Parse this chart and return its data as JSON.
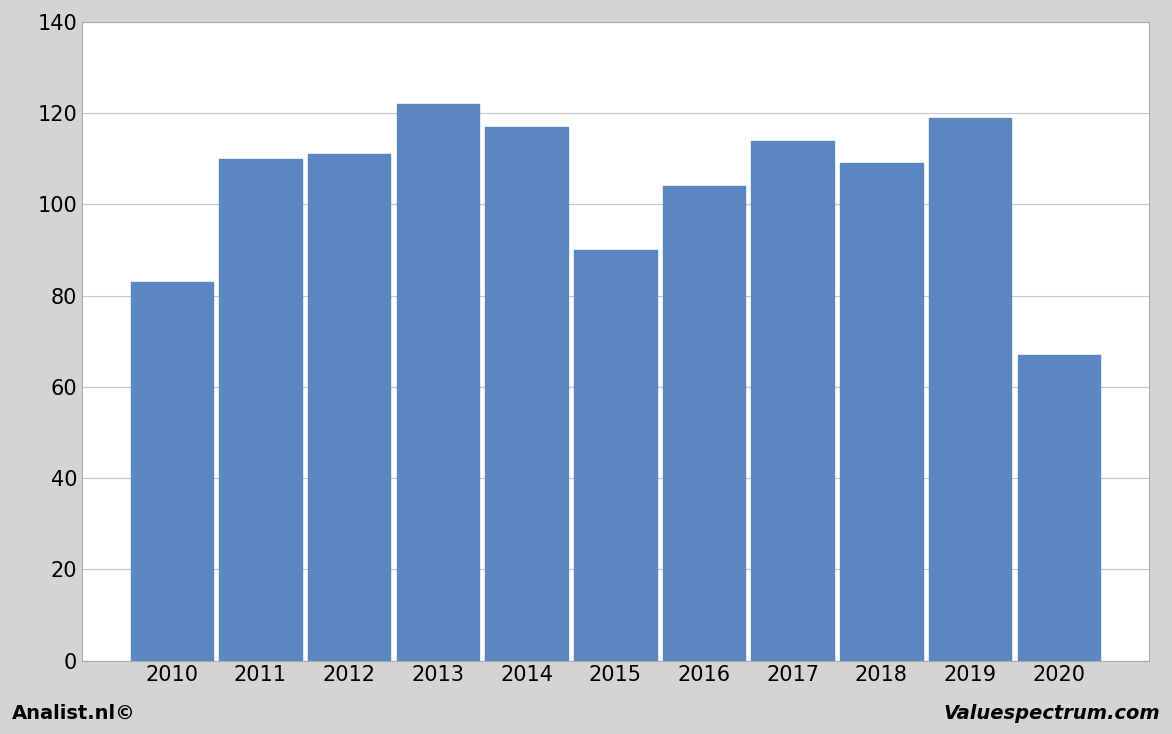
{
  "categories": [
    "2010",
    "2011",
    "2012",
    "2013",
    "2014",
    "2015",
    "2016",
    "2017",
    "2018",
    "2019",
    "2020"
  ],
  "values": [
    83,
    110,
    111,
    122,
    117,
    90,
    104,
    114,
    109,
    119,
    67
  ],
  "bar_color": "#5b87c0",
  "ylim": [
    0,
    140
  ],
  "yticks": [
    0,
    20,
    40,
    60,
    80,
    100,
    120,
    140
  ],
  "background_color": "#d4d4d4",
  "plot_background_color": "#ffffff",
  "grid_color": "#c8c8c8",
  "footer_left": "Analist.nl©",
  "footer_right": "Valuespectrum.com",
  "footer_fontsize": 14,
  "tick_fontsize": 15,
  "bar_width": 0.93
}
